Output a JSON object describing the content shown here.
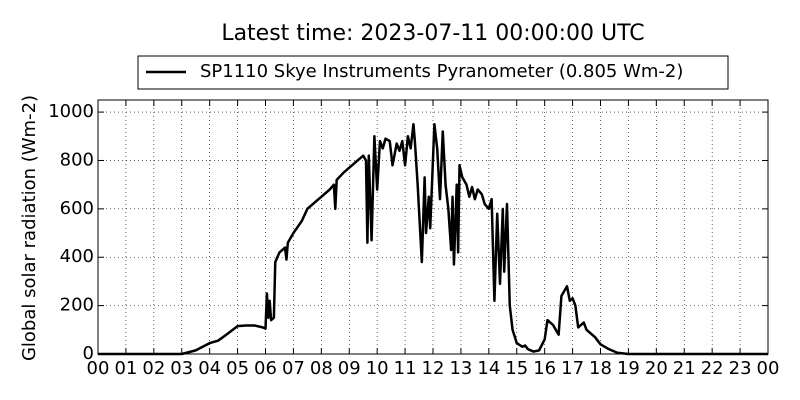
{
  "chart_data": {
    "type": "line",
    "title": "Latest time: 2023-07-11 00:00:00 UTC",
    "ylabel": "Global solar radiation (Wm-2)",
    "xlim": [
      0,
      24
    ],
    "ylim": [
      0,
      1050
    ],
    "xticks": [
      {
        "value": 0,
        "label": "00"
      },
      {
        "value": 1,
        "label": "01"
      },
      {
        "value": 2,
        "label": "02"
      },
      {
        "value": 3,
        "label": "03"
      },
      {
        "value": 4,
        "label": "04"
      },
      {
        "value": 5,
        "label": "05"
      },
      {
        "value": 6,
        "label": "06"
      },
      {
        "value": 7,
        "label": "07"
      },
      {
        "value": 8,
        "label": "08"
      },
      {
        "value": 9,
        "label": "09"
      },
      {
        "value": 10,
        "label": "10"
      },
      {
        "value": 11,
        "label": "11"
      },
      {
        "value": 12,
        "label": "12"
      },
      {
        "value": 13,
        "label": "13"
      },
      {
        "value": 14,
        "label": "14"
      },
      {
        "value": 15,
        "label": "15"
      },
      {
        "value": 16,
        "label": "16"
      },
      {
        "value": 17,
        "label": "17"
      },
      {
        "value": 18,
        "label": "18"
      },
      {
        "value": 19,
        "label": "19"
      },
      {
        "value": 20,
        "label": "20"
      },
      {
        "value": 21,
        "label": "21"
      },
      {
        "value": 22,
        "label": "22"
      },
      {
        "value": 23,
        "label": "23"
      },
      {
        "value": 24,
        "label": "00"
      }
    ],
    "yticks": [
      0,
      200,
      400,
      600,
      800,
      1000
    ],
    "grid": true,
    "legend": "top",
    "x": [
      0,
      3,
      3.5,
      4,
      4.3,
      4.6,
      5,
      5.3,
      5.6,
      5.9,
      6,
      6.05,
      6.1,
      6.15,
      6.2,
      6.3,
      6.35,
      6.5,
      6.7,
      6.75,
      6.8,
      7,
      7.3,
      7.5,
      7.8,
      8,
      8.3,
      8.45,
      8.5,
      8.55,
      8.8,
      9,
      9.3,
      9.5,
      9.6,
      9.65,
      9.7,
      9.8,
      9.9,
      10,
      10.1,
      10.2,
      10.3,
      10.45,
      10.55,
      10.7,
      10.8,
      10.9,
      11,
      11.1,
      11.2,
      11.3,
      11.35,
      11.45,
      11.6,
      11.7,
      11.75,
      11.85,
      11.9,
      12.05,
      12.15,
      12.25,
      12.35,
      12.45,
      12.55,
      12.65,
      12.7,
      12.75,
      12.85,
      12.9,
      12.95,
      13.05,
      13.2,
      13.3,
      13.4,
      13.5,
      13.6,
      13.75,
      13.85,
      14,
      14.1,
      14.2,
      14.3,
      14.4,
      14.5,
      14.55,
      14.65,
      14.75,
      14.85,
      15,
      15.2,
      15.3,
      15.4,
      15.6,
      15.8,
      16,
      16.1,
      16.3,
      16.5,
      16.6,
      16.8,
      16.9,
      17,
      17.1,
      17.2,
      17.4,
      17.5,
      17.8,
      18,
      18.3,
      18.6,
      19,
      24
    ],
    "series": [
      {
        "name": "SP1110 Skye Instruments Pyranometer (0.805 Wm-2)",
        "color": "#000000",
        "values": [
          0,
          0,
          15,
          45,
          55,
          80,
          115,
          118,
          118,
          110,
          105,
          250,
          150,
          220,
          140,
          150,
          380,
          420,
          440,
          390,
          460,
          500,
          550,
          600,
          630,
          650,
          680,
          700,
          600,
          720,
          750,
          770,
          800,
          820,
          800,
          460,
          820,
          470,
          900,
          680,
          880,
          850,
          890,
          880,
          780,
          870,
          840,
          880,
          780,
          900,
          850,
          950,
          880,
          700,
          380,
          730,
          500,
          650,
          520,
          950,
          850,
          640,
          920,
          700,
          600,
          430,
          650,
          370,
          700,
          420,
          780,
          730,
          700,
          650,
          690,
          640,
          680,
          660,
          620,
          600,
          640,
          220,
          580,
          290,
          600,
          340,
          620,
          200,
          100,
          45,
          30,
          35,
          20,
          10,
          15,
          60,
          140,
          120,
          80,
          240,
          280,
          220,
          230,
          200,
          110,
          130,
          100,
          70,
          40,
          20,
          5,
          0,
          0
        ]
      }
    ]
  }
}
